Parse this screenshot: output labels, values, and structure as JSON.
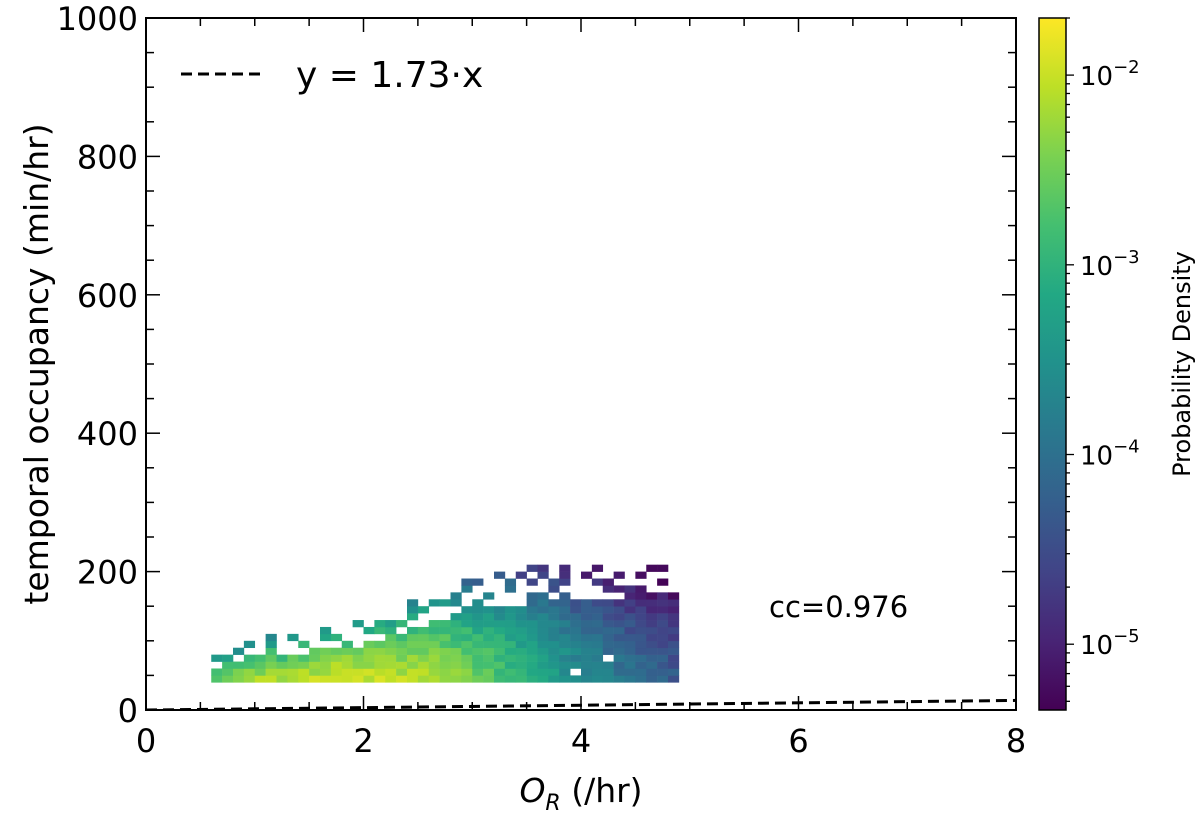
{
  "chart_data": {
    "type": "heatmap",
    "subtype": "2d-histogram with fit line",
    "title": "",
    "xlabel": "O_R (/hr)",
    "xlabel_main": "O",
    "xlabel_sub": "R",
    "xlabel_unit": " (/hr)",
    "ylabel": "temporal occupancy (min/hr)",
    "xlim": [
      0,
      8
    ],
    "ylim": [
      0,
      1000
    ],
    "x_ticks": [
      0,
      2,
      4,
      6,
      8
    ],
    "x_tick_labels": [
      "0",
      "2",
      "4",
      "6",
      "8"
    ],
    "x_minor_step": 0.5,
    "y_ticks": [
      0,
      200,
      400,
      600,
      800,
      1000
    ],
    "y_tick_labels": [
      "0",
      "200",
      "400",
      "600",
      "800",
      "1000"
    ],
    "y_minor_step": 50,
    "grid": false,
    "fit_line": {
      "label": "y = 1.73·x",
      "slope": 1.73,
      "intercept": 0,
      "style": "dashed",
      "color": "#000000"
    },
    "legend": {
      "position": "upper left",
      "entries": [
        "y = 1.73·x"
      ]
    },
    "annotation": "cc=0.976",
    "correlation_coefficient": 0.976,
    "colorbar": {
      "label": "Probability Density",
      "scale": "log",
      "colormap": "viridis",
      "range": [
        4.5e-06,
        0.02
      ],
      "tick_values": [
        1e-05,
        0.0001,
        0.001,
        0.01
      ],
      "tick_labels": [
        {
          "base": "10",
          "exp": "−5"
        },
        {
          "base": "10",
          "exp": "−4"
        },
        {
          "base": "10",
          "exp": "−3"
        },
        {
          "base": "10",
          "exp": "−2"
        }
      ]
    },
    "density_model": {
      "x_range_data": [
        0.6,
        4.9
      ],
      "bin_width_x": 0.1,
      "bin_height_y": 10,
      "center_slope": 1.73,
      "peak_x": 1.7,
      "peak_density": 0.018
    }
  }
}
